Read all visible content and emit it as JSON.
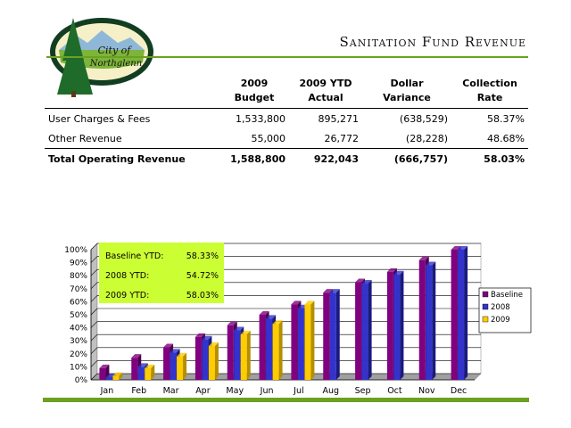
{
  "header": {
    "title": "Sanitation Fund Revenue",
    "logo_text_1": "City of",
    "logo_text_2": "Northglenn"
  },
  "table": {
    "columns": [
      {
        "line1": "2009",
        "line2": "Budget"
      },
      {
        "line1": "2009 YTD",
        "line2": "Actual"
      },
      {
        "line1": "Dollar",
        "line2": "Variance"
      },
      {
        "line1": "Collection",
        "line2": "Rate"
      }
    ],
    "rows": [
      {
        "label": "User Charges & Fees",
        "budget": "1,533,800",
        "actual": "895,271",
        "variance": "(638,529)",
        "rate": "58.37%"
      },
      {
        "label": "Other Revenue",
        "budget": "55,000",
        "actual": "26,772",
        "variance": "(28,228)",
        "rate": "48.68%"
      }
    ],
    "total": {
      "label": "Total Operating Revenue",
      "budget": "1,588,800",
      "actual": "922,043",
      "variance": "(666,757)",
      "rate": "58.03%"
    }
  },
  "info_box": [
    {
      "label": "Baseline YTD:",
      "value": "58.33%"
    },
    {
      "label": "2008 YTD:",
      "value": "54.72%"
    },
    {
      "label": "2009 YTD:",
      "value": "58.03%"
    }
  ],
  "colors": {
    "baseline": "#800080",
    "y2008": "#3333cc",
    "y2009": "#ffcc00",
    "info_box": "#ccff33",
    "rule": "#6aa121"
  },
  "chart_data": {
    "type": "bar",
    "categories": [
      "Jan",
      "Feb",
      "Mar",
      "Apr",
      "May",
      "Jun",
      "Jul",
      "Aug",
      "Sep",
      "Oct",
      "Nov",
      "Dec"
    ],
    "series": [
      {
        "name": "Baseline",
        "values": [
          9,
          17,
          25,
          33,
          42,
          50,
          58,
          67,
          75,
          83,
          92,
          100
        ]
      },
      {
        "name": "2008",
        "values": [
          2,
          10,
          21,
          31,
          38,
          47,
          55,
          67,
          74,
          81,
          88,
          100
        ]
      },
      {
        "name": "2009",
        "values": [
          3,
          9,
          18,
          26,
          35,
          43,
          58,
          null,
          null,
          null,
          null,
          null
        ]
      }
    ],
    "yticks": [
      "0%",
      "10%",
      "20%",
      "30%",
      "40%",
      "50%",
      "60%",
      "70%",
      "80%",
      "90%",
      "100%"
    ],
    "ylim": [
      0,
      100
    ],
    "legend": "right",
    "grid": true
  }
}
